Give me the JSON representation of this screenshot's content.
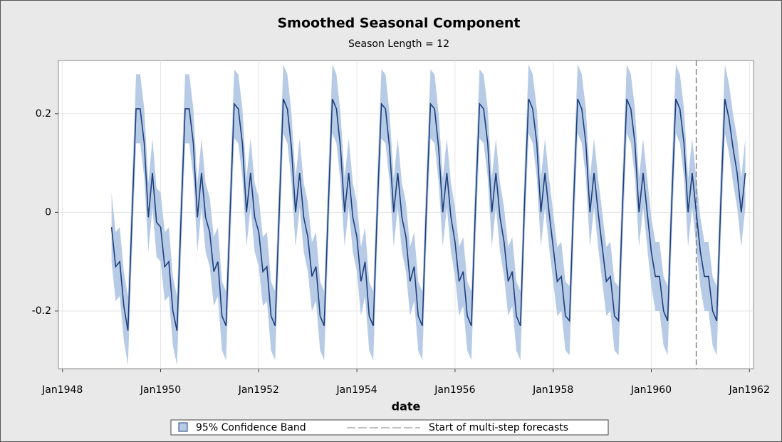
{
  "chart_data": {
    "type": "band_line",
    "title": "Smoothed Seasonal Component",
    "subtitle": "Season Length = 12",
    "x_label": "date",
    "x": [
      "1949-01",
      "1949-02",
      "1949-03",
      "1949-04",
      "1949-05",
      "1949-06",
      "1949-07",
      "1949-08",
      "1949-09",
      "1949-10",
      "1949-11",
      "1949-12",
      "1950-01",
      "1950-02",
      "1950-03",
      "1950-04",
      "1950-05",
      "1950-06",
      "1950-07",
      "1950-08",
      "1950-09",
      "1950-10",
      "1950-11",
      "1950-12",
      "1951-01",
      "1951-02",
      "1951-03",
      "1951-04",
      "1951-05",
      "1951-06",
      "1951-07",
      "1951-08",
      "1951-09",
      "1951-10",
      "1951-11",
      "1951-12",
      "1952-01",
      "1952-02",
      "1952-03",
      "1952-04",
      "1952-05",
      "1952-06",
      "1952-07",
      "1952-08",
      "1952-09",
      "1952-10",
      "1952-11",
      "1952-12",
      "1953-01",
      "1953-02",
      "1953-03",
      "1953-04",
      "1953-05",
      "1953-06",
      "1953-07",
      "1953-08",
      "1953-09",
      "1953-10",
      "1953-11",
      "1953-12",
      "1954-01",
      "1954-02",
      "1954-03",
      "1954-04",
      "1954-05",
      "1954-06",
      "1954-07",
      "1954-08",
      "1954-09",
      "1954-10",
      "1954-11",
      "1954-12",
      "1955-01",
      "1955-02",
      "1955-03",
      "1955-04",
      "1955-05",
      "1955-06",
      "1955-07",
      "1955-08",
      "1955-09",
      "1955-10",
      "1955-11",
      "1955-12",
      "1956-01",
      "1956-02",
      "1956-03",
      "1956-04",
      "1956-05",
      "1956-06",
      "1956-07",
      "1956-08",
      "1956-09",
      "1956-10",
      "1956-11",
      "1956-12",
      "1957-01",
      "1957-02",
      "1957-03",
      "1957-04",
      "1957-05",
      "1957-06",
      "1957-07",
      "1957-08",
      "1957-09",
      "1957-10",
      "1957-11",
      "1957-12",
      "1958-01",
      "1958-02",
      "1958-03",
      "1958-04",
      "1958-05",
      "1958-06",
      "1958-07",
      "1958-08",
      "1958-09",
      "1958-10",
      "1958-11",
      "1958-12",
      "1959-01",
      "1959-02",
      "1959-03",
      "1959-04",
      "1959-05",
      "1959-06",
      "1959-07",
      "1959-08",
      "1959-09",
      "1959-10",
      "1959-11",
      "1959-12",
      "1960-01",
      "1960-02",
      "1960-03",
      "1960-04",
      "1960-05",
      "1960-06",
      "1960-07",
      "1960-08",
      "1960-09",
      "1960-10",
      "1960-11",
      "1960-12",
      "1961-01",
      "1961-02",
      "1961-03",
      "1961-04",
      "1961-05",
      "1961-06",
      "1961-07",
      "1961-08",
      "1961-09",
      "1961-10",
      "1961-11",
      "1961-12"
    ],
    "series": [
      {
        "name": "95% Confidence Band",
        "color": "#b7cbe6",
        "lower": [
          -0.1,
          -0.18,
          -0.17,
          -0.26,
          -0.31,
          -0.08,
          0.14,
          0.14,
          0.07,
          -0.08,
          0.01,
          -0.09,
          -0.1,
          -0.18,
          -0.17,
          -0.27,
          -0.31,
          -0.08,
          0.14,
          0.14,
          0.07,
          -0.08,
          0.01,
          -0.08,
          -0.11,
          -0.19,
          -0.17,
          -0.28,
          -0.3,
          -0.07,
          0.15,
          0.14,
          0.07,
          -0.07,
          0.01,
          -0.08,
          -0.11,
          -0.19,
          -0.18,
          -0.28,
          -0.3,
          -0.07,
          0.16,
          0.14,
          0.06,
          -0.07,
          0.01,
          -0.08,
          -0.12,
          -0.2,
          -0.18,
          -0.28,
          -0.3,
          -0.06,
          0.16,
          0.14,
          0.06,
          -0.07,
          0.01,
          -0.08,
          -0.12,
          -0.21,
          -0.17,
          -0.28,
          -0.3,
          -0.06,
          0.15,
          0.14,
          0.06,
          -0.07,
          0.01,
          -0.08,
          -0.12,
          -0.21,
          -0.18,
          -0.28,
          -0.3,
          -0.06,
          0.15,
          0.14,
          0.06,
          -0.07,
          0.01,
          -0.08,
          -0.13,
          -0.21,
          -0.19,
          -0.28,
          -0.3,
          -0.06,
          0.15,
          0.14,
          0.07,
          -0.07,
          0.01,
          -0.08,
          -0.13,
          -0.21,
          -0.19,
          -0.28,
          -0.3,
          -0.05,
          0.16,
          0.14,
          0.07,
          -0.07,
          0.01,
          -0.07,
          -0.14,
          -0.21,
          -0.2,
          -0.28,
          -0.29,
          -0.05,
          0.16,
          0.14,
          0.07,
          -0.07,
          0.01,
          -0.07,
          -0.14,
          -0.21,
          -0.2,
          -0.28,
          -0.29,
          -0.05,
          0.16,
          0.14,
          0.07,
          -0.07,
          0.01,
          -0.07,
          -0.15,
          -0.2,
          -0.2,
          -0.27,
          -0.29,
          -0.05,
          0.16,
          0.14,
          0.07,
          -0.07,
          0.01,
          -0.07,
          -0.15,
          -0.2,
          -0.2,
          -0.27,
          -0.29,
          -0.05,
          0.16,
          0.12,
          0.06,
          0.01,
          -0.07,
          0.01
        ],
        "upper": [
          0.04,
          -0.04,
          -0.03,
          -0.12,
          -0.17,
          0.06,
          0.28,
          0.28,
          0.21,
          0.06,
          0.15,
          0.05,
          0.04,
          -0.04,
          -0.03,
          -0.13,
          -0.17,
          0.06,
          0.28,
          0.28,
          0.21,
          0.06,
          0.15,
          0.06,
          0.03,
          -0.05,
          -0.03,
          -0.14,
          -0.16,
          0.07,
          0.29,
          0.28,
          0.21,
          0.07,
          0.15,
          0.06,
          0.03,
          -0.05,
          -0.04,
          -0.14,
          -0.16,
          0.07,
          0.3,
          0.28,
          0.2,
          0.07,
          0.15,
          0.06,
          0.02,
          -0.06,
          -0.04,
          -0.14,
          -0.16,
          0.08,
          0.3,
          0.28,
          0.2,
          0.07,
          0.15,
          0.06,
          0.02,
          -0.07,
          -0.03,
          -0.14,
          -0.16,
          0.08,
          0.29,
          0.28,
          0.2,
          0.07,
          0.15,
          0.06,
          0.02,
          -0.07,
          -0.04,
          -0.14,
          -0.16,
          0.08,
          0.29,
          0.28,
          0.2,
          0.07,
          0.15,
          0.06,
          0.01,
          -0.07,
          -0.05,
          -0.14,
          -0.16,
          0.08,
          0.29,
          0.28,
          0.21,
          0.07,
          0.15,
          0.06,
          0.01,
          -0.07,
          -0.05,
          -0.14,
          -0.16,
          0.09,
          0.3,
          0.28,
          0.21,
          0.07,
          0.15,
          0.07,
          0.0,
          -0.07,
          -0.06,
          -0.14,
          -0.15,
          0.09,
          0.3,
          0.28,
          0.21,
          0.07,
          0.15,
          0.07,
          0.0,
          -0.07,
          -0.06,
          -0.14,
          -0.15,
          0.09,
          0.3,
          0.28,
          0.21,
          0.07,
          0.15,
          0.07,
          -0.01,
          -0.06,
          -0.06,
          -0.13,
          -0.15,
          0.09,
          0.3,
          0.28,
          0.21,
          0.07,
          0.15,
          0.07,
          -0.01,
          -0.06,
          -0.06,
          -0.13,
          -0.15,
          0.09,
          0.3,
          0.26,
          0.2,
          0.15,
          0.07,
          0.15
        ]
      },
      {
        "color": "#1f3f7a",
        "values": [
          -0.03,
          -0.11,
          -0.1,
          -0.19,
          -0.24,
          -0.01,
          0.21,
          0.21,
          0.14,
          -0.01,
          0.08,
          -0.02,
          -0.03,
          -0.11,
          -0.1,
          -0.2,
          -0.24,
          -0.01,
          0.21,
          0.21,
          0.14,
          -0.01,
          0.08,
          -0.01,
          -0.04,
          -0.12,
          -0.1,
          -0.21,
          -0.23,
          0.0,
          0.22,
          0.21,
          0.14,
          0.0,
          0.08,
          -0.01,
          -0.04,
          -0.12,
          -0.11,
          -0.21,
          -0.23,
          0.0,
          0.23,
          0.21,
          0.13,
          0.0,
          0.08,
          -0.01,
          -0.05,
          -0.13,
          -0.11,
          -0.21,
          -0.23,
          0.01,
          0.23,
          0.21,
          0.13,
          0.0,
          0.08,
          -0.01,
          -0.05,
          -0.14,
          -0.1,
          -0.21,
          -0.23,
          0.01,
          0.22,
          0.21,
          0.13,
          0.0,
          0.08,
          -0.01,
          -0.05,
          -0.14,
          -0.11,
          -0.21,
          -0.23,
          0.01,
          0.22,
          0.21,
          0.13,
          0.0,
          0.08,
          -0.01,
          -0.06,
          -0.14,
          -0.12,
          -0.21,
          -0.23,
          0.01,
          0.22,
          0.21,
          0.14,
          0.0,
          0.08,
          -0.01,
          -0.06,
          -0.14,
          -0.12,
          -0.21,
          -0.23,
          0.02,
          0.23,
          0.21,
          0.14,
          0.0,
          0.08,
          0.0,
          -0.07,
          -0.14,
          -0.13,
          -0.21,
          -0.22,
          0.02,
          0.23,
          0.21,
          0.14,
          0.0,
          0.08,
          0.0,
          -0.07,
          -0.14,
          -0.13,
          -0.21,
          -0.22,
          0.02,
          0.23,
          0.21,
          0.14,
          0.0,
          0.08,
          0.0,
          -0.08,
          -0.13,
          -0.13,
          -0.2,
          -0.22,
          0.02,
          0.23,
          0.21,
          0.14,
          0.0,
          0.08,
          0.0,
          -0.08,
          -0.13,
          -0.13,
          -0.2,
          -0.22,
          0.02,
          0.23,
          0.19,
          0.13,
          0.08,
          0.0,
          0.08
        ]
      }
    ],
    "forecast_start": {
      "x": "1960-12",
      "label": "Start of multi-step forecasts",
      "color": "#808080"
    },
    "xlim": [
      "1947-12",
      "1962-02"
    ],
    "xticks": [
      {
        "value": "1948-01",
        "label": "Jan1948"
      },
      {
        "value": "1950-01",
        "label": "Jan1950"
      },
      {
        "value": "1952-01",
        "label": "Jan1952"
      },
      {
        "value": "1954-01",
        "label": "Jan1954"
      },
      {
        "value": "1956-01",
        "label": "Jan1956"
      },
      {
        "value": "1958-01",
        "label": "Jan1958"
      },
      {
        "value": "1960-01",
        "label": "Jan1960"
      },
      {
        "value": "1962-01",
        "label": "Jan1962"
      }
    ],
    "ylim": [
      -0.317,
      0.308
    ],
    "yticks": [
      -0.2,
      0,
      0.2
    ],
    "grid": true
  }
}
